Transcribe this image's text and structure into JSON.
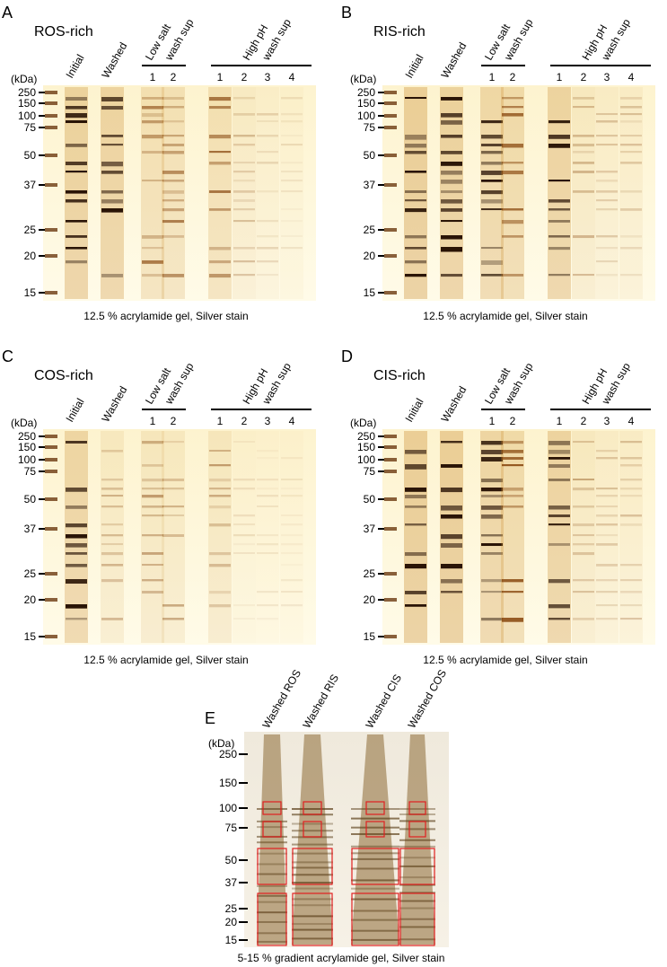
{
  "panels": [
    {
      "letter": "A",
      "title": "ROS-rich",
      "unit": "(kDa)",
      "markers": [
        250,
        150,
        100,
        75,
        50,
        37,
        25,
        20,
        15
      ],
      "lanes": [
        "Initial",
        "Washed"
      ],
      "groups": [
        {
          "label": [
            "Low salt",
            "wash sup"
          ],
          "lanes": [
            "1",
            "2"
          ]
        },
        {
          "label": [
            "High pH",
            "wash sup"
          ],
          "lanes": [
            "1",
            "2",
            "3",
            "4"
          ]
        }
      ],
      "caption": "12.5 % acrylamide gel, Silver stain"
    },
    {
      "letter": "B",
      "title": "RIS-rich",
      "unit": "(kDa)",
      "markers": [
        250,
        150,
        100,
        75,
        50,
        37,
        25,
        20,
        15
      ],
      "lanes": [
        "Initial",
        "Washed"
      ],
      "groups": [
        {
          "label": [
            "Low salt",
            "wash sup"
          ],
          "lanes": [
            "1",
            "2"
          ]
        },
        {
          "label": [
            "High pH",
            "wash sup"
          ],
          "lanes": [
            "1",
            "2",
            "3",
            "4"
          ]
        }
      ],
      "caption": "12.5 % acrylamide gel, Silver stain"
    },
    {
      "letter": "C",
      "title": "COS-rich",
      "unit": "(kDa)",
      "markers": [
        250,
        150,
        100,
        75,
        50,
        37,
        25,
        20,
        15
      ],
      "lanes": [
        "Initial",
        "Washed"
      ],
      "groups": [
        {
          "label": [
            "Low salt",
            "wash sup"
          ],
          "lanes": [
            "1",
            "2"
          ]
        },
        {
          "label": [
            "High pH",
            "wash sup"
          ],
          "lanes": [
            "1",
            "2",
            "3",
            "4"
          ]
        }
      ],
      "caption": "12.5 % acrylamide gel, Silver stain"
    },
    {
      "letter": "D",
      "title": "CIS-rich",
      "unit": "(kDa)",
      "markers": [
        250,
        150,
        100,
        75,
        50,
        37,
        25,
        20,
        15
      ],
      "lanes": [
        "Initial",
        "Washed"
      ],
      "groups": [
        {
          "label": [
            "Low salt",
            "wash sup"
          ],
          "lanes": [
            "1",
            "2"
          ]
        },
        {
          "label": [
            "High pH",
            "wash sup"
          ],
          "lanes": [
            "1",
            "2",
            "3",
            "4"
          ]
        }
      ],
      "caption": "12.5 % acrylamide gel, Silver stain"
    }
  ],
  "panel_e": {
    "letter": "E",
    "unit": "(kDa)",
    "markers": [
      250,
      150,
      100,
      75,
      50,
      37,
      25,
      20,
      15
    ],
    "lanes": [
      "Washed ROS",
      "Washed RIS",
      "Washed CIS",
      "Washed COS"
    ],
    "caption": "5-15 % gradient acrylamide gel, Silver stain"
  }
}
